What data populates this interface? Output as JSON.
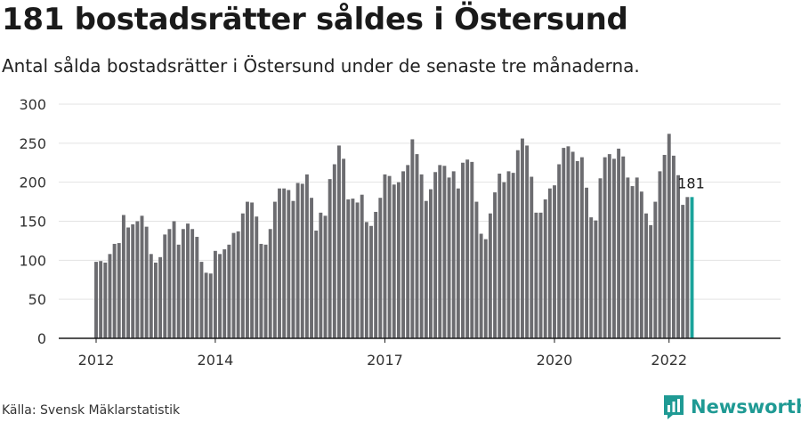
{
  "title": "181 bostadsrätter såldes i Östersund",
  "subtitle": "Antal sålda bostadsrätter i Östersund under de senaste tre månaderna.",
  "source": "Källa: Svensk Mäklarstatistik",
  "brand": "Newsworthy",
  "colors": {
    "bar": "#6c6c70",
    "highlight": "#1aa39b",
    "grid": "#e3e3e3",
    "axis": "#1a1a1a",
    "brand": "#1f9a94"
  },
  "chart_data": {
    "type": "bar",
    "ylim": [
      0,
      300
    ],
    "yticks": [
      0,
      50,
      100,
      150,
      200,
      250,
      300
    ],
    "xtick_labels": [
      {
        "label": "2012",
        "index": 0
      },
      {
        "label": "2014",
        "index": 26
      },
      {
        "label": "2017",
        "index": 63
      },
      {
        "label": "2020",
        "index": 100
      },
      {
        "label": "2022",
        "index": 125
      }
    ],
    "highlight_label": "181",
    "values": [
      98,
      99,
      97,
      108,
      121,
      122,
      158,
      142,
      146,
      150,
      157,
      143,
      108,
      97,
      104,
      133,
      140,
      150,
      120,
      140,
      147,
      140,
      130,
      98,
      84,
      83,
      112,
      108,
      114,
      120,
      135,
      137,
      160,
      175,
      174,
      156,
      121,
      120,
      140,
      175,
      192,
      192,
      190,
      176,
      199,
      198,
      210,
      180,
      138,
      161,
      157,
      204,
      223,
      247,
      230,
      178,
      179,
      174,
      184,
      149,
      144,
      162,
      180,
      210,
      208,
      197,
      200,
      214,
      222,
      255,
      236,
      210,
      176,
      191,
      213,
      222,
      221,
      206,
      214,
      192,
      225,
      229,
      226,
      175,
      134,
      127,
      160,
      187,
      211,
      200,
      214,
      212,
      241,
      256,
      247,
      207,
      161,
      161,
      178,
      192,
      196,
      223,
      244,
      246,
      239,
      227,
      232,
      193,
      155,
      151,
      205,
      232,
      236,
      230,
      243,
      233,
      206,
      195,
      206,
      188,
      160,
      145,
      175,
      214,
      235,
      262,
      234,
      209,
      171,
      181,
      181
    ]
  }
}
